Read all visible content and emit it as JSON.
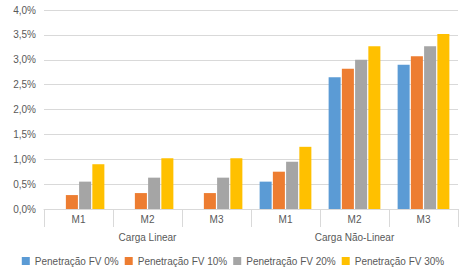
{
  "chart_data": {
    "type": "bar",
    "categories": [
      "M1",
      "M2",
      "M3",
      "M1",
      "M2",
      "M3"
    ],
    "category_groups": [
      "Carga Linear",
      "Carga Linear",
      "Carga Linear",
      "Carga Não-Linear",
      "Carga Não-Linear",
      "Carga Não-Linear"
    ],
    "series": [
      {
        "name": "Penetração FV 0%",
        "color": "#5b9bd5",
        "values": [
          0,
          0,
          0,
          0.55,
          2.65,
          2.9
        ]
      },
      {
        "name": "Penetração FV 10%",
        "color": "#ed7d31",
        "values": [
          0.28,
          0.32,
          0.32,
          0.75,
          2.82,
          3.07
        ]
      },
      {
        "name": "Penetração FV 20%",
        "color": "#a5a5a5",
        "values": [
          0.55,
          0.63,
          0.63,
          0.95,
          3.0,
          3.27
        ]
      },
      {
        "name": "Penetração FV 30%",
        "color": "#ffc000",
        "values": [
          0.9,
          1.02,
          1.02,
          1.25,
          3.27,
          3.52
        ]
      }
    ],
    "ylim": [
      0,
      4
    ],
    "yticks": [
      {
        "value": 0,
        "label": "0,0%"
      },
      {
        "value": 0.5,
        "label": "0,5%"
      },
      {
        "value": 1,
        "label": "1,0%"
      },
      {
        "value": 1.5,
        "label": "1,5%"
      },
      {
        "value": 2,
        "label": "2,0%"
      },
      {
        "value": 2.5,
        "label": "2,5%"
      },
      {
        "value": 3,
        "label": "3,0%"
      },
      {
        "value": 3.5,
        "label": "3,5%"
      },
      {
        "value": 4,
        "label": "4,0%"
      }
    ],
    "grid": true,
    "legend": "bottom"
  }
}
